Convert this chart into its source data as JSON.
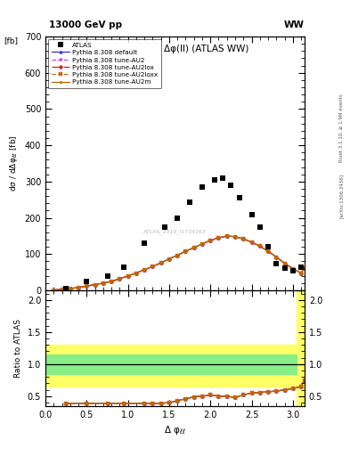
{
  "title_main": "Δφ(ll) (ATLAS WW)",
  "header_left": "13000 GeV pp",
  "header_right": "WW",
  "right_label_top": "Rivet 3.1.10, ≥ 1.9M events",
  "right_label_bottom": "[arXiv:1306.3436]",
  "watermark": "ATLAS_2019_I1734263",
  "ylabel_main": "dσ / dΔφ_{ℓℓ} [fb]",
  "ylabel_ratio": "Ratio to ATLAS",
  "xlabel": "Δ φ_{ℓℓ}",
  "xlim": [
    0,
    3.14159
  ],
  "ylim_main": [
    0,
    700
  ],
  "ylim_ratio": [
    0.35,
    2.15
  ],
  "yticks_main": [
    0,
    100,
    200,
    300,
    400,
    500,
    600,
    700
  ],
  "yticks_ratio": [
    0.5,
    1.0,
    1.5,
    2.0
  ],
  "atlas_x": [
    0.25,
    0.5,
    0.75,
    0.95,
    1.2,
    1.45,
    1.6,
    1.75,
    1.9,
    2.05,
    2.15,
    2.25,
    2.35,
    2.5,
    2.6,
    2.7,
    2.8,
    2.9,
    3.0,
    3.1
  ],
  "atlas_y": [
    4,
    25,
    40,
    65,
    130,
    175,
    200,
    243,
    285,
    305,
    310,
    290,
    255,
    210,
    175,
    120,
    75,
    62,
    55,
    65
  ],
  "pythia_x": [
    0.1,
    0.2,
    0.3,
    0.4,
    0.5,
    0.6,
    0.7,
    0.8,
    0.9,
    1.0,
    1.1,
    1.2,
    1.3,
    1.4,
    1.5,
    1.6,
    1.7,
    1.8,
    1.9,
    2.0,
    2.1,
    2.2,
    2.3,
    2.4,
    2.5,
    2.6,
    2.7,
    2.8,
    2.9,
    3.0,
    3.1,
    3.14
  ],
  "pythia_y_default": [
    1,
    3,
    5,
    8,
    12,
    16,
    20,
    25,
    32,
    40,
    48,
    57,
    66,
    76,
    87,
    97,
    108,
    118,
    128,
    138,
    145,
    150,
    148,
    142,
    133,
    122,
    108,
    92,
    75,
    60,
    48,
    62
  ],
  "pythia_y_au2": [
    1,
    3,
    5,
    8,
    12,
    16,
    20,
    25,
    32,
    40,
    48,
    57,
    66,
    76,
    87,
    97,
    108,
    118,
    128,
    138,
    145,
    150,
    148,
    142,
    133,
    122,
    108,
    92,
    75,
    60,
    48,
    62
  ],
  "pythia_y_au2lox": [
    1,
    3,
    5,
    8,
    12,
    16,
    20,
    25,
    32,
    40,
    48,
    57,
    66,
    76,
    87,
    97,
    108,
    118,
    128,
    138,
    145,
    150,
    148,
    142,
    133,
    122,
    108,
    92,
    75,
    60,
    48,
    62
  ],
  "pythia_y_au2loxx": [
    1,
    3,
    5,
    8,
    12,
    16,
    20,
    25,
    32,
    40,
    48,
    57,
    66,
    76,
    87,
    97,
    108,
    118,
    128,
    138,
    145,
    150,
    148,
    142,
    133,
    122,
    108,
    92,
    75,
    60,
    48,
    62
  ],
  "pythia_y_au2m": [
    1,
    3,
    5,
    8,
    12,
    16,
    20,
    25,
    32,
    40,
    48,
    57,
    66,
    76,
    87,
    97,
    108,
    118,
    128,
    138,
    145,
    150,
    148,
    142,
    133,
    122,
    108,
    92,
    75,
    60,
    48,
    62
  ],
  "ratio_x": [
    0.25,
    0.5,
    0.75,
    0.95,
    1.2,
    1.3,
    1.4,
    1.5,
    1.6,
    1.7,
    1.8,
    1.9,
    2.0,
    2.1,
    2.2,
    2.3,
    2.4,
    2.5,
    2.6,
    2.7,
    2.8,
    2.9,
    3.0,
    3.1,
    3.14
  ],
  "ratio_y": [
    0.39,
    0.39,
    0.39,
    0.39,
    0.39,
    0.39,
    0.39,
    0.4,
    0.43,
    0.46,
    0.49,
    0.5,
    0.52,
    0.5,
    0.5,
    0.48,
    0.52,
    0.55,
    0.56,
    0.57,
    0.58,
    0.6,
    0.62,
    0.65,
    0.75
  ],
  "band_yellow_lo": 0.65,
  "band_yellow_hi": 1.3,
  "band_green_lo": 0.85,
  "band_green_hi": 1.15,
  "band_x_main_end": 3.05,
  "band_x_last_start": 3.05,
  "band_x_last_end": 3.14159,
  "band_yellow_lo_last": 0.35,
  "band_yellow_hi_last": 2.15,
  "color_default": "#3333cc",
  "color_au2": "#cc44cc",
  "color_au2lox": "#cc2222",
  "color_au2loxx": "#cc6622",
  "color_au2m": "#bb6600",
  "legend_entries": [
    "ATLAS",
    "Pythia 8.308 default",
    "Pythia 8.308 tune-AU2",
    "Pythia 8.308 tune-AU2lox",
    "Pythia 8.308 tune-AU2loxx",
    "Pythia 8.308 tune-AU2m"
  ]
}
